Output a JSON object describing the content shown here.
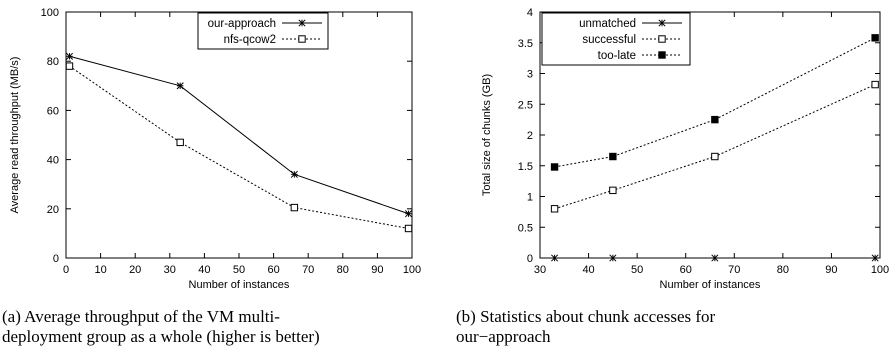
{
  "chart_data": [
    {
      "type": "line",
      "xlabel": "Number of instances",
      "ylabel": "Average read throughput (MB/s)",
      "xlim": [
        0,
        100
      ],
      "ylim": [
        0,
        100
      ],
      "xticks": [
        "0",
        "10",
        "20",
        "30",
        "40",
        "50",
        "60",
        "70",
        "80",
        "90",
        "100"
      ],
      "yticks": [
        "0",
        "20",
        "40",
        "60",
        "80",
        "100"
      ],
      "grid": false,
      "legend_position": "top-right",
      "series": [
        {
          "name": "our-approach",
          "marker": "asterisk",
          "dash": "solid",
          "x": [
            1,
            33,
            66,
            99
          ],
          "y": [
            82,
            70,
            34,
            18
          ]
        },
        {
          "name": "nfs-qcow2",
          "marker": "open-square",
          "dash": "dotted",
          "x": [
            1,
            33,
            66,
            99
          ],
          "y": [
            78,
            47,
            20.5,
            12
          ]
        }
      ],
      "caption": [
        "(a) Average throughput of the VM multi-",
        "deployment group as a whole (higher is better)"
      ]
    },
    {
      "type": "line",
      "xlabel": "Number of instances",
      "ylabel": "Total size of chunks (GB)",
      "xlim": [
        30,
        100
      ],
      "ylim": [
        0,
        4
      ],
      "xticks": [
        "30",
        "40",
        "50",
        "60",
        "70",
        "80",
        "90",
        "100"
      ],
      "yticks": [
        "0",
        "0.5",
        "1",
        "1.5",
        "2",
        "2.5",
        "3",
        "3.5",
        "4"
      ],
      "grid": false,
      "legend_position": "top-left",
      "series": [
        {
          "name": "unmatched",
          "marker": "asterisk",
          "dash": "solid",
          "x": [
            33,
            45,
            66,
            99
          ],
          "y": [
            0,
            0,
            0,
            0
          ]
        },
        {
          "name": "successful",
          "marker": "open-square",
          "dash": "dotted",
          "x": [
            33,
            45,
            66,
            99
          ],
          "y": [
            0.8,
            1.1,
            1.65,
            2.82
          ]
        },
        {
          "name": "too-late",
          "marker": "filled-square",
          "dash": "dotted",
          "x": [
            33,
            45,
            66,
            99
          ],
          "y": [
            1.48,
            1.65,
            2.25,
            3.58
          ]
        }
      ],
      "caption": [
        "(b) Statistics about chunk accesses for",
        "our−approach"
      ]
    }
  ]
}
